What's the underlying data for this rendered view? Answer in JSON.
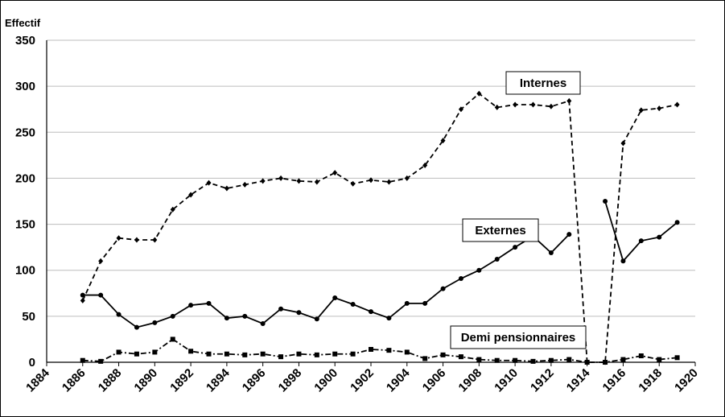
{
  "chart_data": {
    "type": "line",
    "title": "",
    "xlabel": "",
    "ylabel": "Effectif",
    "xlim": [
      1884,
      1920
    ],
    "ylim": [
      0,
      350
    ],
    "x_ticks": [
      1884,
      1886,
      1888,
      1890,
      1892,
      1894,
      1896,
      1898,
      1900,
      1902,
      1904,
      1906,
      1908,
      1910,
      1912,
      1914,
      1916,
      1918,
      1920
    ],
    "y_ticks": [
      0,
      50,
      100,
      150,
      200,
      250,
      300,
      350
    ],
    "grid": "horizontal",
    "legend": "none",
    "series": [
      {
        "name": "Internes",
        "line": "dashed",
        "marker": "diamond",
        "color": "#000000",
        "points": [
          [
            1886,
            67
          ],
          [
            1887,
            110
          ],
          [
            1888,
            135
          ],
          [
            1889,
            133
          ],
          [
            1890,
            133
          ],
          [
            1891,
            166
          ],
          [
            1892,
            182
          ],
          [
            1893,
            195
          ],
          [
            1894,
            189
          ],
          [
            1895,
            193
          ],
          [
            1896,
            197
          ],
          [
            1897,
            200
          ],
          [
            1898,
            197
          ],
          [
            1899,
            196
          ],
          [
            1900,
            206
          ],
          [
            1901,
            194
          ],
          [
            1902,
            198
          ],
          [
            1903,
            196
          ],
          [
            1904,
            200
          ],
          [
            1905,
            214
          ],
          [
            1906,
            241
          ],
          [
            1907,
            275
          ],
          [
            1908,
            292
          ],
          [
            1909,
            277
          ],
          [
            1910,
            280
          ],
          [
            1911,
            280
          ],
          [
            1912,
            278
          ],
          [
            1913,
            284
          ],
          [
            1914,
            0
          ],
          [
            1915,
            0
          ],
          [
            1916,
            238
          ],
          [
            1917,
            274
          ],
          [
            1918,
            276
          ],
          [
            1919,
            280
          ]
        ]
      },
      {
        "name": "Externes",
        "line": "solid",
        "marker": "circle",
        "color": "#000000",
        "segments": [
          [
            [
              1886,
              73
            ],
            [
              1887,
              73
            ],
            [
              1888,
              52
            ],
            [
              1889,
              38
            ],
            [
              1890,
              43
            ],
            [
              1891,
              50
            ],
            [
              1892,
              62
            ],
            [
              1893,
              64
            ],
            [
              1894,
              48
            ],
            [
              1895,
              50
            ],
            [
              1896,
              42
            ],
            [
              1897,
              58
            ],
            [
              1898,
              54
            ],
            [
              1899,
              47
            ],
            [
              1900,
              70
            ],
            [
              1901,
              63
            ],
            [
              1902,
              55
            ],
            [
              1903,
              48
            ],
            [
              1904,
              64
            ],
            [
              1905,
              64
            ],
            [
              1906,
              80
            ],
            [
              1907,
              91
            ],
            [
              1908,
              100
            ],
            [
              1909,
              112
            ],
            [
              1910,
              125
            ],
            [
              1911,
              137
            ],
            [
              1912,
              119
            ],
            [
              1913,
              139
            ]
          ],
          [
            [
              1915,
              175
            ],
            [
              1916,
              110
            ],
            [
              1917,
              132
            ],
            [
              1918,
              136
            ],
            [
              1919,
              152
            ]
          ]
        ]
      },
      {
        "name": "Demi pensionnaires",
        "line": "dash-dot",
        "marker": "square",
        "color": "#000000",
        "points": [
          [
            1886,
            2
          ],
          [
            1887,
            1
          ],
          [
            1888,
            11
          ],
          [
            1889,
            9
          ],
          [
            1890,
            11
          ],
          [
            1891,
            25
          ],
          [
            1892,
            12
          ],
          [
            1893,
            9
          ],
          [
            1894,
            9
          ],
          [
            1895,
            8
          ],
          [
            1896,
            9
          ],
          [
            1897,
            6
          ],
          [
            1898,
            9
          ],
          [
            1899,
            8
          ],
          [
            1900,
            9
          ],
          [
            1901,
            9
          ],
          [
            1902,
            14
          ],
          [
            1903,
            13
          ],
          [
            1904,
            11
          ],
          [
            1905,
            4
          ],
          [
            1906,
            8
          ],
          [
            1907,
            6
          ],
          [
            1908,
            3
          ],
          [
            1909,
            2
          ],
          [
            1910,
            2
          ],
          [
            1911,
            1
          ],
          [
            1912,
            2
          ],
          [
            1913,
            3
          ],
          [
            1914,
            0
          ],
          [
            1915,
            0
          ],
          [
            1916,
            3
          ],
          [
            1917,
            7
          ],
          [
            1918,
            3
          ],
          [
            1919,
            5
          ]
        ]
      }
    ],
    "annotations": [
      {
        "text": "Internes",
        "series": "Internes"
      },
      {
        "text": "Externes",
        "series": "Externes"
      },
      {
        "text": "Demi pensionnaires",
        "series": "Demi pensionnaires"
      }
    ]
  }
}
